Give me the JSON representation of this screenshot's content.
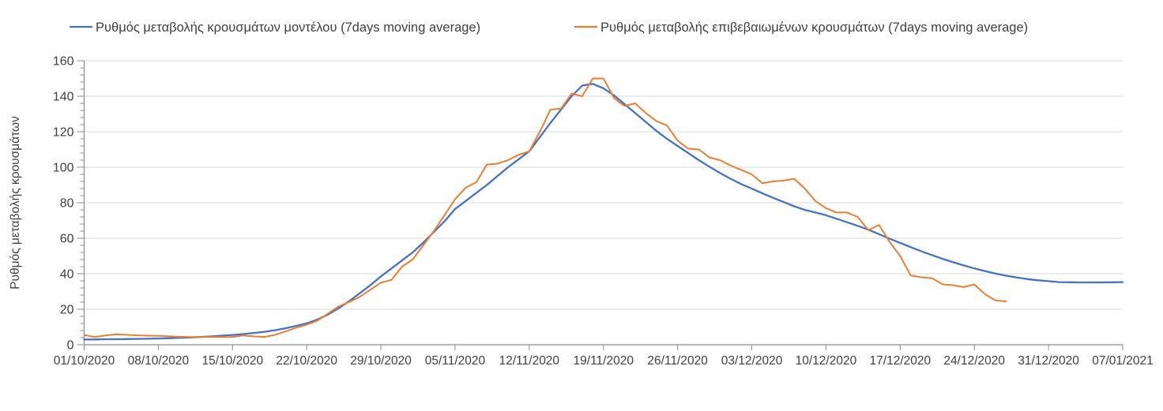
{
  "legend": {
    "items": [
      {
        "label": "Ρυθμός μεταβολής κρουσμάτων μοντέλου (7days moving average)",
        "color": "#4472C4"
      },
      {
        "label": "Ρυθμός μεταβολής επιβεβαιωμένων κρουσμάτων (7days moving average)",
        "color": "#ED7D31"
      }
    ]
  },
  "y_axis": {
    "title": "Ρυθμός μεταβολής κρουσμάτων",
    "tick_labels": [
      "0",
      "20",
      "40",
      "60",
      "80",
      "100",
      "120",
      "140",
      "160"
    ]
  },
  "x_axis": {
    "tick_labels": [
      "01/10/2020",
      "08/10/2020",
      "15/10/2020",
      "22/10/2020",
      "29/10/2020",
      "05/11/2020",
      "12/11/2020",
      "19/11/2020",
      "26/11/2020",
      "03/12/2020",
      "10/12/2020",
      "17/12/2020",
      "24/12/2020",
      "31/12/2020",
      "07/01/2021"
    ]
  },
  "chart_data": {
    "type": "line",
    "title": "",
    "xlabel": "",
    "ylabel": "Ρυθμός μεταβολής κρουσμάτων",
    "ylim": [
      0,
      160
    ],
    "y_major_step": 20,
    "y_minor_step": 4,
    "grid": "horizontal",
    "legend_position": "top",
    "x_tick_labels": [
      "01/10/2020",
      "08/10/2020",
      "15/10/2020",
      "22/10/2020",
      "29/10/2020",
      "05/11/2020",
      "12/11/2020",
      "19/11/2020",
      "26/11/2020",
      "03/12/2020",
      "10/12/2020",
      "17/12/2020",
      "24/12/2020",
      "31/12/2020",
      "07/01/2021"
    ],
    "x_days_per_tick": 7,
    "x_total_days": 98,
    "colors": {
      "grid": "#D9D9D9",
      "axis": "#8C8C8C",
      "text": "#404040"
    },
    "series": [
      {
        "name": "Ρυθμός μεταβολής κρουσμάτων μοντέλου (7days moving average)",
        "color": "#4472C4",
        "start_date": "01/10/2020",
        "interval": "daily",
        "values": [
          3.0,
          3.0,
          3.1,
          3.1,
          3.2,
          3.3,
          3.4,
          3.5,
          3.7,
          3.9,
          4.1,
          4.4,
          4.7,
          5.1,
          5.5,
          6.0,
          6.6,
          7.3,
          8.2,
          9.3,
          10.6,
          12.1,
          14.2,
          17.0,
          20.5,
          24.5,
          29.0,
          33.5,
          38.5,
          43.0,
          47.5,
          52.0,
          57.5,
          63.5,
          69.5,
          76.5,
          81.0,
          85.5,
          90.0,
          95.0,
          100.0,
          104.5,
          109.0,
          117.0,
          125.0,
          132.5,
          140.0,
          146.0,
          147.0,
          144.5,
          140.5,
          135.5,
          130.5,
          125.5,
          120.5,
          116.0,
          112.0,
          108.0,
          104.0,
          100.3,
          96.8,
          93.5,
          90.5,
          88.0,
          85.3,
          82.8,
          80.4,
          78.0,
          76.0,
          74.5,
          73.0,
          71.0,
          69.0,
          67.0,
          64.8,
          62.3,
          59.8,
          57.4,
          55.0,
          52.7,
          50.5,
          48.4,
          46.5,
          44.7,
          43.0,
          41.5,
          40.1,
          38.9,
          37.9,
          37.0,
          36.3,
          35.8,
          35.3,
          35.2,
          35.1,
          35.1,
          35.1,
          35.2,
          35.3
        ]
      },
      {
        "name": "Ρυθμός μεταβολής επιβεβαιωμένων κρουσμάτων (7days moving average)",
        "color": "#ED7D31",
        "start_date": "01/10/2020",
        "interval": "daily",
        "values": [
          5.5,
          4.3,
          5.2,
          5.8,
          5.6,
          5.3,
          5.1,
          5.0,
          4.7,
          4.5,
          4.3,
          4.3,
          4.4,
          4.3,
          4.4,
          5.2,
          4.7,
          4.4,
          5.5,
          7.5,
          9.5,
          11.3,
          13.5,
          17.5,
          21.5,
          24.0,
          27.0,
          31.0,
          35.0,
          36.5,
          44.0,
          48.0,
          56.0,
          64.0,
          73.0,
          82.0,
          88.5,
          91.5,
          101.5,
          102.0,
          104.0,
          107.0,
          109.0,
          120.0,
          132.5,
          133.0,
          141.5,
          140.0,
          150.0,
          150.0,
          139.0,
          134.5,
          136.0,
          130.5,
          126.0,
          123.5,
          115.0,
          110.5,
          110.0,
          105.5,
          104.0,
          101.0,
          98.5,
          96.0,
          91.0,
          92.0,
          92.5,
          93.5,
          88.0,
          81.0,
          77.0,
          74.5,
          74.5,
          72.0,
          64.5,
          67.5,
          58.0,
          50.0,
          39.0,
          38.0,
          37.5,
          34.0,
          33.5,
          32.5,
          34.0,
          28.5,
          25.0,
          24.4
        ]
      }
    ]
  }
}
